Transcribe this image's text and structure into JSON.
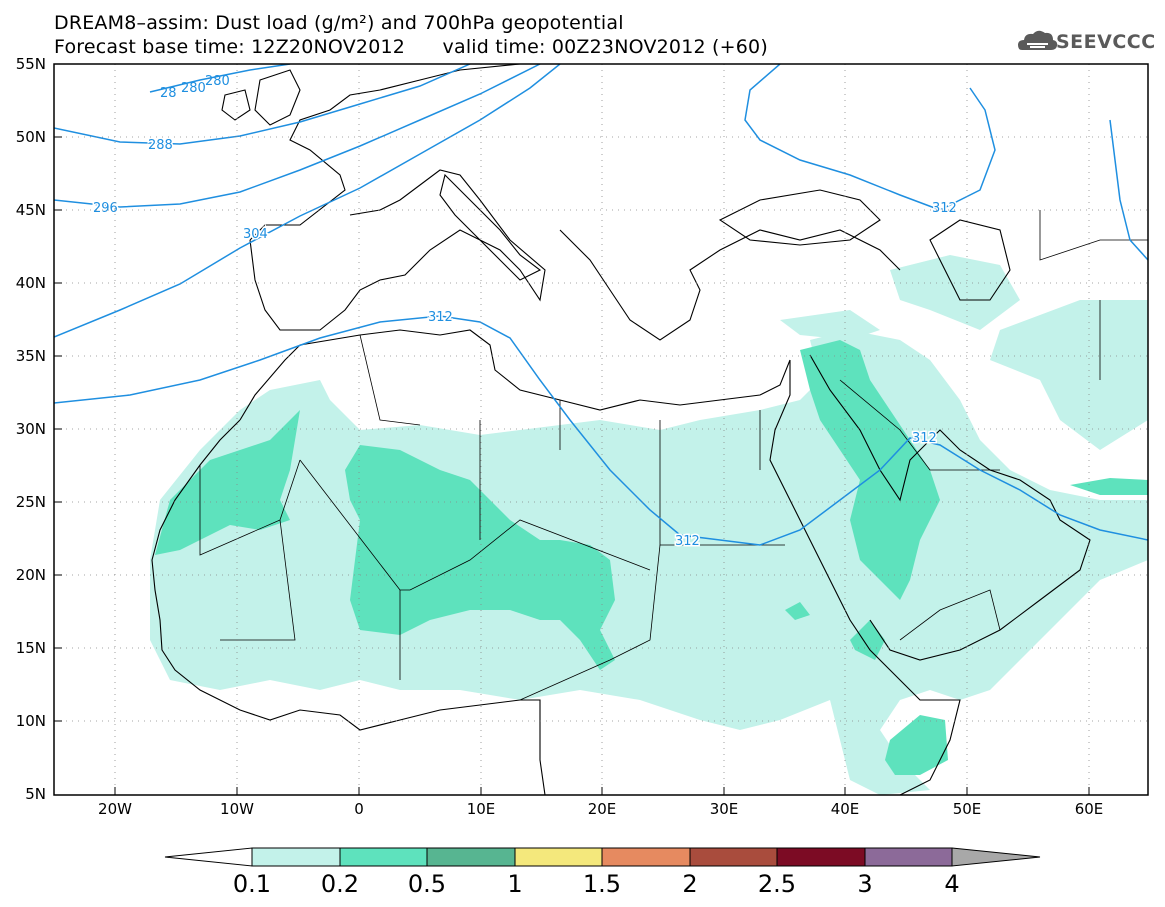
{
  "header": {
    "title_line1": "DREAM8–assim: Dust load (g/m²) and 700hPa geopotential",
    "title_line2": "Forecast base time: 12Z20NOV2012      valid time: 00Z23NOV2012 (+60)",
    "logo_text": "SEEVCCC"
  },
  "axes": {
    "lat_labels": [
      "55N",
      "50N",
      "45N",
      "40N",
      "35N",
      "30N",
      "25N",
      "20N",
      "15N",
      "10N",
      "5N"
    ],
    "lon_labels": [
      "20W",
      "10W",
      "0",
      "10E",
      "20E",
      "30E",
      "40E",
      "50E",
      "60E"
    ]
  },
  "contour_labels": [
    "28",
    "280",
    "280",
    "288",
    "296",
    "304",
    "312",
    "312",
    "312",
    "312",
    "312"
  ],
  "colorbar": {
    "labels": [
      "0.1",
      "0.2",
      "0.5",
      "1",
      "1.5",
      "2",
      "2.5",
      "3",
      "4"
    ],
    "colors": [
      "#ffffff",
      "#c3f2ea",
      "#5ee2bd",
      "#57b591",
      "#f4e87c",
      "#e68a60",
      "#a94c3d",
      "#7c0b24",
      "#8c6a99",
      "#a8a8a8"
    ]
  },
  "colors": {
    "contour_line": "#1f8fe0",
    "dust_light": "#c3f2ea",
    "dust_medium": "#5ee2bd"
  }
}
